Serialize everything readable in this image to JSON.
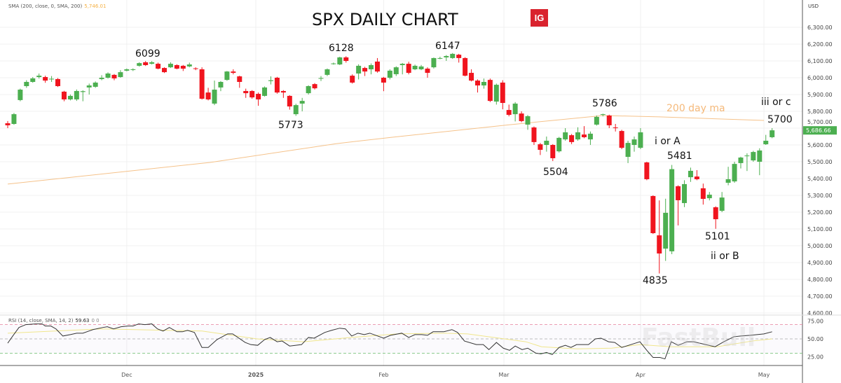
{
  "chart_data": {
    "type": "candlestick",
    "title": "SPX DAILY CHART",
    "currency": "USD",
    "ylim": [
      4600,
      6300
    ],
    "yticks": [
      "6,300.00",
      "6,200.00",
      "6,100.00",
      "6,000.00",
      "5,900.00",
      "5,800.00",
      "5,700.00",
      "5,600.00",
      "5,500.00",
      "5,400.00",
      "5,300.00",
      "5,200.00",
      "5,100.00",
      "5,000.00",
      "4,900.00",
      "4,800.00",
      "4,700.00",
      "4,600.00"
    ],
    "ytick_values": [
      6300,
      6200,
      6100,
      6000,
      5900,
      5800,
      5700,
      5600,
      5500,
      5400,
      5300,
      5200,
      5100,
      5000,
      4900,
      4800,
      4700,
      4600
    ],
    "last_price": "5,686.66",
    "last_price_value": 5686.66,
    "xticks": [
      {
        "label": "Dec",
        "bar": 19,
        "bold": false
      },
      {
        "label": "2025",
        "bar": 39.6,
        "bold": true
      },
      {
        "label": "Feb",
        "bar": 60,
        "bold": false
      },
      {
        "label": "Mar",
        "bar": 79.2,
        "bold": false
      },
      {
        "label": "Apr",
        "bar": 101,
        "bold": false
      },
      {
        "label": "May",
        "bar": 120.7,
        "bold": false
      }
    ],
    "grid": true,
    "colors": {
      "up": "#4caf50",
      "down": "#f0141e",
      "sma": "#f5c28a",
      "rsi": "#333333",
      "rsi_ma": "#f0e68c",
      "last_price_bg": "#4caf50"
    },
    "ohlc_order": [
      "open",
      "high",
      "low",
      "close"
    ],
    "candles": [
      [
        5729,
        5742,
        5700,
        5717
      ],
      [
        5725,
        5790,
        5720,
        5783
      ],
      [
        5867,
        5935,
        5860,
        5929
      ],
      [
        5950,
        5985,
        5940,
        5975
      ],
      [
        5975,
        6004,
        5970,
        5996
      ],
      [
        6004,
        6025,
        5995,
        6012
      ],
      [
        6004,
        6012,
        5970,
        5983
      ],
      [
        5990,
        6010,
        5975,
        5994
      ],
      [
        5992,
        5998,
        5945,
        5950
      ],
      [
        5917,
        5922,
        5860,
        5871
      ],
      [
        5871,
        5900,
        5865,
        5892
      ],
      [
        5871,
        5930,
        5862,
        5921
      ],
      [
        5915,
        5925,
        5860,
        5920
      ],
      [
        5942,
        5965,
        5900,
        5954
      ],
      [
        5946,
        5978,
        5940,
        5971
      ],
      [
        5992,
        6015,
        5985,
        6000
      ],
      [
        6000,
        6032,
        5995,
        6025
      ],
      [
        6017,
        6022,
        5985,
        5996
      ],
      [
        6004,
        6045,
        6000,
        6033
      ],
      [
        6042,
        6055,
        6038,
        6050
      ],
      [
        6046,
        6056,
        6040,
        6050
      ],
      [
        6071,
        6092,
        6066,
        6087
      ],
      [
        6092,
        6099,
        6070,
        6075
      ],
      [
        6083,
        6099,
        6079,
        6092
      ],
      [
        6083,
        6090,
        6050,
        6054
      ],
      [
        6058,
        6062,
        6028,
        6033
      ],
      [
        6062,
        6092,
        6058,
        6083
      ],
      [
        6075,
        6080,
        6050,
        6054
      ],
      [
        6071,
        6076,
        6040,
        6054
      ],
      [
        6067,
        6090,
        6062,
        6079
      ],
      [
        6056,
        6062,
        6045,
        6052
      ],
      [
        6050,
        6062,
        5870,
        5875
      ],
      [
        5912,
        5940,
        5865,
        5871
      ],
      [
        5846,
        5983,
        5837,
        5929
      ],
      [
        5942,
        5980,
        5920,
        5975
      ],
      [
        5987,
        6040,
        5982,
        6037
      ],
      [
        6037,
        6050,
        6020,
        6029
      ],
      [
        6008,
        6012,
        5940,
        5975
      ],
      [
        5921,
        5935,
        5880,
        5908
      ],
      [
        5921,
        5926,
        5875,
        5883
      ],
      [
        5904,
        5912,
        5833,
        5871
      ],
      [
        5892,
        5948,
        5888,
        5942
      ],
      [
        5980,
        6008,
        5960,
        5985
      ],
      [
        6000,
        6005,
        5905,
        5912
      ],
      [
        5921,
        5926,
        5880,
        5912
      ],
      [
        5892,
        5896,
        5810,
        5829
      ],
      [
        5783,
        5845,
        5773,
        5837
      ],
      [
        5846,
        5880,
        5800,
        5862
      ],
      [
        5908,
        5955,
        5900,
        5950
      ],
      [
        5962,
        5968,
        5930,
        5937
      ],
      [
        5994,
        6010,
        5980,
        5998
      ],
      [
        6017,
        6055,
        6010,
        6050
      ],
      [
        6081,
        6090,
        6078,
        6085
      ],
      [
        6079,
        6125,
        6075,
        6121
      ],
      [
        6121,
        6128,
        6090,
        6100
      ],
      [
        6012,
        6020,
        5965,
        5971
      ],
      [
        6025,
        6080,
        5990,
        6071
      ],
      [
        6058,
        6065,
        6010,
        6037
      ],
      [
        6050,
        6085,
        6020,
        6075
      ],
      [
        6096,
        6117,
        6030,
        6037
      ],
      [
        6000,
        6005,
        5920,
        5971
      ],
      [
        6000,
        6050,
        5990,
        6042
      ],
      [
        6021,
        6068,
        6010,
        6062
      ],
      [
        6075,
        6088,
        6020,
        6083
      ],
      [
        6083,
        6095,
        6020,
        6029
      ],
      [
        6050,
        6078,
        6045,
        6071
      ],
      [
        6050,
        6076,
        6045,
        6067
      ],
      [
        6054,
        6062,
        6000,
        6029
      ],
      [
        6062,
        6120,
        6055,
        6117
      ],
      [
        6115,
        6125,
        6110,
        6117
      ],
      [
        6121,
        6135,
        6100,
        6129
      ],
      [
        6117,
        6147,
        6112,
        6142
      ],
      [
        6137,
        6142,
        6090,
        6117
      ],
      [
        6117,
        6122,
        6008,
        6012
      ],
      [
        6029,
        6050,
        5978,
        5983
      ],
      [
        5983,
        5990,
        5912,
        5954
      ],
      [
        5954,
        5995,
        5935,
        5975
      ],
      [
        5987,
        5995,
        5855,
        5862
      ],
      [
        5858,
        5965,
        5840,
        5958
      ],
      [
        5971,
        5985,
        5812,
        5850
      ],
      [
        5808,
        5840,
        5770,
        5779
      ],
      [
        5783,
        5855,
        5740,
        5846
      ],
      [
        5787,
        5800,
        5735,
        5742
      ],
      [
        5721,
        5778,
        5690,
        5771
      ],
      [
        5704,
        5710,
        5600,
        5617
      ],
      [
        5604,
        5612,
        5540,
        5571
      ],
      [
        5600,
        5650,
        5560,
        5625
      ],
      [
        5600,
        5605,
        5504,
        5521
      ],
      [
        5562,
        5648,
        5555,
        5642
      ],
      [
        5633,
        5700,
        5625,
        5675
      ],
      [
        5658,
        5665,
        5605,
        5617
      ],
      [
        5633,
        5705,
        5625,
        5675
      ],
      [
        5662,
        5712,
        5640,
        5646
      ],
      [
        5633,
        5680,
        5600,
        5667
      ],
      [
        5721,
        5775,
        5715,
        5767
      ],
      [
        5780,
        5786,
        5770,
        5783
      ],
      [
        5775,
        5780,
        5700,
        5717
      ],
      [
        5704,
        5725,
        5680,
        5700
      ],
      [
        5683,
        5690,
        5575,
        5583
      ],
      [
        5529,
        5625,
        5492,
        5612
      ],
      [
        5600,
        5650,
        5560,
        5633
      ],
      [
        5583,
        5700,
        5575,
        5675
      ],
      [
        5496,
        5500,
        5390,
        5396
      ],
      [
        5296,
        5300,
        5070,
        5075
      ],
      [
        5062,
        5270,
        4835,
        4954
      ],
      [
        4983,
        5280,
        4910,
        5196
      ],
      [
        4967,
        5481,
        4950,
        5456
      ],
      [
        5354,
        5360,
        5121,
        5271
      ],
      [
        5254,
        5390,
        5230,
        5367
      ],
      [
        5408,
        5465,
        5380,
        5446
      ],
      [
        5412,
        5450,
        5390,
        5396
      ],
      [
        5342,
        5370,
        5245,
        5279
      ],
      [
        5283,
        5320,
        5270,
        5304
      ],
      [
        5229,
        5235,
        5101,
        5158
      ],
      [
        5208,
        5320,
        5200,
        5287
      ],
      [
        5375,
        5470,
        5360,
        5396
      ],
      [
        5383,
        5500,
        5375,
        5487
      ],
      [
        5492,
        5530,
        5460,
        5525
      ],
      [
        5535,
        5550,
        5445,
        5537
      ],
      [
        5508,
        5565,
        5500,
        5558
      ],
      [
        5500,
        5580,
        5420,
        5567
      ],
      [
        5604,
        5660,
        5600,
        5625
      ],
      [
        5646,
        5700,
        5640,
        5687
      ]
    ],
    "sma200": {
      "legend": "SMA (200, close, 0, SMA, 200)",
      "value": "5,746.01",
      "points": [
        [
          0,
          5367
        ],
        [
          32.3,
          5496
        ],
        [
          52.5,
          5608
        ],
        [
          61.4,
          5646
        ],
        [
          80,
          5720
        ],
        [
          95,
          5775
        ],
        [
          104,
          5767
        ],
        [
          120.7,
          5746
        ]
      ]
    },
    "rsi": {
      "legend": "RSI (14, close, SMA, 14, 2)",
      "value": "59.63",
      "extra": "0  0",
      "ylim": [
        15,
        85
      ],
      "yticks": [
        "75.00",
        "50.00",
        "25.00"
      ],
      "ytick_values": [
        75,
        50,
        25
      ],
      "bands": {
        "upper": 70,
        "middle": 50,
        "lower": 30
      },
      "points": [
        [
          0,
          44
        ],
        [
          0.8,
          54
        ],
        [
          1.8,
          66
        ],
        [
          2.9,
          70
        ],
        [
          4.4,
          71
        ],
        [
          5.5,
          71
        ],
        [
          6,
          68
        ],
        [
          6.9,
          68
        ],
        [
          7.7,
          64
        ],
        [
          8.8,
          54
        ],
        [
          10,
          56
        ],
        [
          11,
          58
        ],
        [
          12,
          58
        ],
        [
          13.6,
          63
        ],
        [
          15.2,
          66
        ],
        [
          15.9,
          67
        ],
        [
          16.9,
          64
        ],
        [
          18.1,
          67
        ],
        [
          19.2,
          68
        ],
        [
          20,
          68
        ],
        [
          20.9,
          71
        ],
        [
          21.9,
          70
        ],
        [
          23,
          71
        ],
        [
          23.9,
          64
        ],
        [
          24.8,
          61
        ],
        [
          25.8,
          66
        ],
        [
          27,
          60
        ],
        [
          27.9,
          60
        ],
        [
          28.7,
          62
        ],
        [
          29.8,
          59
        ],
        [
          31,
          38
        ],
        [
          32,
          38
        ],
        [
          33.4,
          49
        ],
        [
          35.1,
          57
        ],
        [
          35.9,
          57
        ],
        [
          37.9,
          45
        ],
        [
          38.8,
          42
        ],
        [
          39.9,
          41
        ],
        [
          41,
          49
        ],
        [
          41.9,
          52
        ],
        [
          43,
          46
        ],
        [
          43.8,
          47
        ],
        [
          45,
          40
        ],
        [
          46.9,
          42
        ],
        [
          48,
          52
        ],
        [
          48.9,
          51
        ],
        [
          50.6,
          59
        ],
        [
          51.7,
          62
        ],
        [
          53,
          65
        ],
        [
          53.9,
          64
        ],
        [
          54.9,
          54
        ],
        [
          55.9,
          58
        ],
        [
          56.9,
          56
        ],
        [
          57.8,
          58
        ],
        [
          60,
          51
        ],
        [
          61.1,
          55
        ],
        [
          62.9,
          58
        ],
        [
          64,
          52
        ],
        [
          65,
          56
        ],
        [
          66.1,
          56
        ],
        [
          67,
          55
        ],
        [
          67.9,
          60
        ],
        [
          69.6,
          60
        ],
        [
          70.9,
          63
        ],
        [
          71.8,
          59
        ],
        [
          72.9,
          47
        ],
        [
          74.8,
          42
        ],
        [
          75.9,
          42
        ],
        [
          76.8,
          35
        ],
        [
          78,
          45
        ],
        [
          79.1,
          37
        ],
        [
          80.1,
          34
        ],
        [
          81,
          40
        ],
        [
          82.1,
          35
        ],
        [
          83,
          37
        ],
        [
          84.3,
          30
        ],
        [
          85.1,
          29
        ],
        [
          86,
          31
        ],
        [
          86.9,
          28
        ],
        [
          88,
          38
        ],
        [
          89,
          41
        ],
        [
          89.9,
          38
        ],
        [
          90.8,
          42
        ],
        [
          92.7,
          42
        ],
        [
          93.8,
          50
        ],
        [
          94.7,
          51
        ],
        [
          95.9,
          46
        ],
        [
          96.9,
          45
        ],
        [
          98,
          38
        ],
        [
          99.1,
          41
        ],
        [
          100.9,
          46
        ],
        [
          102,
          34
        ],
        [
          103,
          24
        ],
        [
          104.1,
          24
        ],
        [
          104.9,
          22
        ],
        [
          105.9,
          46
        ],
        [
          107,
          41
        ],
        [
          108.4,
          46
        ],
        [
          109.5,
          46
        ],
        [
          111.4,
          42
        ],
        [
          112.9,
          39
        ],
        [
          114.3,
          46
        ],
        [
          115.9,
          53
        ],
        [
          117,
          54
        ],
        [
          118.5,
          55
        ],
        [
          119.6,
          56
        ],
        [
          120.7,
          57
        ],
        [
          122,
          60
        ]
      ],
      "ma_points": [
        [
          0,
          58
        ],
        [
          15,
          64
        ],
        [
          31,
          61
        ],
        [
          39.8,
          50
        ],
        [
          47.2,
          46
        ],
        [
          54.7,
          52
        ],
        [
          62.2,
          57
        ],
        [
          69.6,
          58
        ],
        [
          73.4,
          57
        ],
        [
          82.7,
          46
        ],
        [
          85.2,
          39
        ],
        [
          90.8,
          36
        ],
        [
          96.4,
          37
        ],
        [
          100.9,
          42
        ],
        [
          105.8,
          39
        ],
        [
          113.2,
          39
        ],
        [
          118.8,
          47
        ],
        [
          122,
          50
        ]
      ]
    },
    "annotations": {
      "h1": "6099",
      "h2": "6128",
      "h3": "6147",
      "l1": "5773",
      "h4": "5786",
      "l2": "5504",
      "ma_label": "200 day ma",
      "wave_i": "i or A",
      "h5": "5481",
      "l3": "4835",
      "l4": "5101",
      "wave_ii": "ii or B",
      "wave_iii": "iii or c",
      "h6": "5700"
    }
  },
  "branding": {
    "logo": "IG",
    "watermark": "FastBull"
  }
}
